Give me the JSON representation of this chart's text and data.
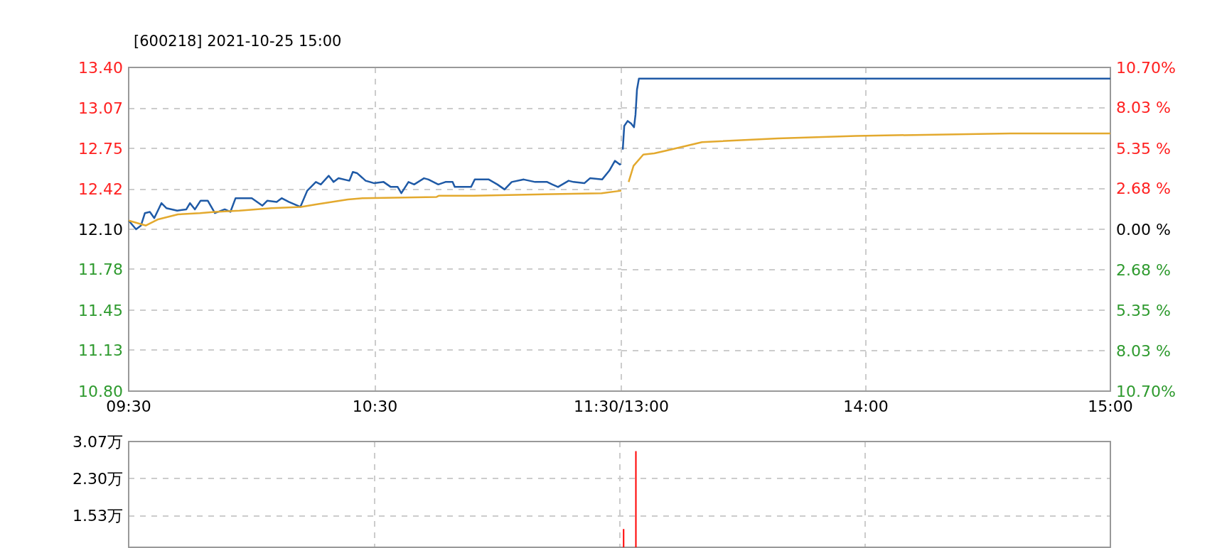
{
  "chart_data": [
    {
      "type": "line",
      "title": "[600218] 2021-10-25 15:00",
      "xlim": [
        9.5,
        11.5
      ],
      "xticks": [
        {
          "value": 9.5,
          "label": "09:30"
        },
        {
          "value": 10.5,
          "label": "10:30"
        },
        {
          "value": 11.5,
          "label": "11:30/13:00"
        }
      ],
      "ylim": [
        10.8,
        13.4
      ],
      "yticks": [
        {
          "value": 10.8,
          "label": "10.80"
        },
        {
          "value": 11.13,
          "label": "11.13"
        },
        {
          "value": 11.45,
          "label": "11.45"
        },
        {
          "value": 11.78,
          "label": "11.78"
        },
        {
          "value": 12.1,
          "label": "12.10"
        },
        {
          "value": 12.42,
          "label": "12.42"
        },
        {
          "value": 12.75,
          "label": "12.75"
        },
        {
          "value": 13.07,
          "label": "13.07"
        },
        {
          "value": 13.4,
          "label": "13.40"
        }
      ],
      "grid": true,
      "marker": "none",
      "line_style": "solid",
      "series": [
        {
          "color": "#1f5aa6",
          "x": [
            9.5,
            9.53,
            9.55,
            9.566,
            9.586,
            9.604,
            9.633,
            9.653,
            9.697,
            9.734,
            9.749,
            9.769,
            9.792,
            9.821,
            9.85,
            9.89,
            9.913,
            9.934,
            9.965,
            10.0,
            10.043,
            10.063,
            10.101,
            10.121,
            10.15,
            10.197,
            10.225,
            10.26,
            10.28,
            10.312,
            10.332,
            10.352,
            10.396,
            10.41,
            10.428,
            10.462,
            10.497,
            10.535,
            10.564,
            10.592,
            10.607,
            10.636,
            10.659,
            10.699,
            10.717,
            10.737,
            10.757,
            10.786,
            10.815,
            10.824,
            10.89,
            10.905,
            10.962,
            10.997,
            11.026,
            11.055,
            11.104,
            11.15,
            11.199,
            11.22,
            11.243,
            11.286,
            11.306,
            11.35,
            11.373,
            11.422,
            11.451,
            11.474,
            11.494,
            11.5
          ],
          "values": [
            12.17,
            12.1,
            12.13,
            12.23,
            12.24,
            12.19,
            12.31,
            12.27,
            12.25,
            12.26,
            12.31,
            12.26,
            12.33,
            12.33,
            12.23,
            12.26,
            12.24,
            12.35,
            12.35,
            12.35,
            12.29,
            12.33,
            12.32,
            12.35,
            12.32,
            12.28,
            12.41,
            12.48,
            12.46,
            12.53,
            12.48,
            12.51,
            12.49,
            12.56,
            12.55,
            12.49,
            12.47,
            12.48,
            12.44,
            12.44,
            12.39,
            12.48,
            12.46,
            12.51,
            12.5,
            12.48,
            12.46,
            12.48,
            12.48,
            12.44,
            12.44,
            12.5,
            12.5,
            12.46,
            12.42,
            12.48,
            12.5,
            12.48,
            12.48,
            12.46,
            12.44,
            12.49,
            12.48,
            12.47,
            12.51,
            12.5,
            12.57,
            12.65,
            12.62,
            12.63
          ]
        },
        {
          "color": "#e3a92e",
          "x": [
            9.5,
            9.57,
            9.62,
            9.7,
            9.79,
            9.85,
            9.95,
            10.08,
            10.2,
            10.26,
            10.39,
            10.45,
            10.75,
            10.76,
            10.9,
            11.42,
            11.5
          ],
          "values": [
            12.17,
            12.13,
            12.18,
            12.22,
            12.23,
            12.24,
            12.25,
            12.27,
            12.28,
            12.3,
            12.34,
            12.35,
            12.36,
            12.37,
            12.37,
            12.39,
            12.41
          ]
        }
      ]
    },
    {
      "type": "line",
      "xlim": [
        13,
        15
      ],
      "xticks": [
        {
          "value": 13,
          "label": null
        },
        {
          "value": 14,
          "label": "14:00"
        },
        {
          "value": 15,
          "label": "15:00"
        }
      ],
      "ylim": [
        10.8,
        13.4
      ],
      "y2lim": [
        -10.7,
        10.7
      ],
      "y2ticks": [
        {
          "value": -10.7,
          "label": "10.70%"
        },
        {
          "value": -8.03,
          "label": "8.03 %"
        },
        {
          "value": -5.35,
          "label": "5.35 %"
        },
        {
          "value": -2.68,
          "label": "2.68 %"
        },
        {
          "value": 0,
          "label": "0.00 %"
        },
        {
          "value": 2.68,
          "label": "2.68 %"
        },
        {
          "value": 5.35,
          "label": "5.35 %"
        },
        {
          "value": 8.03,
          "label": "8.03 %"
        },
        {
          "value": 10.7,
          "label": "10.70%"
        }
      ],
      "grid": true,
      "marker": "none",
      "line_style": "solid",
      "series": [
        {
          "color": "#1f5aa6",
          "x": [
            13.006,
            13.012,
            13.026,
            13.04,
            13.052,
            13.058,
            13.064,
            13.072,
            15
          ],
          "values": [
            12.74,
            12.93,
            12.97,
            12.95,
            12.92,
            13.02,
            13.22,
            13.31,
            13.31
          ]
        },
        {
          "color": "#e3a92e",
          "x": [
            13.03,
            13.05,
            13.09,
            13.135,
            13.18,
            13.33,
            13.64,
            13.96,
            14.59,
            15
          ],
          "values": [
            12.48,
            12.61,
            12.7,
            12.71,
            12.73,
            12.8,
            12.83,
            12.85,
            12.87,
            12.87
          ]
        }
      ]
    },
    {
      "type": "bar",
      "categories": [
        null,
        null,
        null,
        null,
        null,
        null,
        null,
        null,
        null,
        null,
        null,
        null,
        null,
        null,
        null,
        null,
        null,
        null,
        null,
        null,
        null,
        null,
        null,
        null,
        null,
        null,
        null,
        null,
        null,
        null,
        null,
        null,
        null,
        null,
        null,
        null,
        null,
        null,
        null,
        null,
        null,
        null,
        null,
        null,
        null,
        null,
        null,
        null,
        null,
        null,
        null,
        null,
        null,
        null,
        null,
        null,
        null,
        null,
        null,
        null,
        null,
        null,
        null,
        null,
        null,
        null,
        null,
        null,
        null,
        null,
        null,
        null,
        null,
        null,
        null,
        null,
        null,
        null,
        null,
        null,
        null,
        null,
        null,
        null,
        null,
        null,
        null,
        null,
        null,
        null,
        null,
        null,
        null,
        null,
        null,
        null,
        null,
        null,
        null,
        null,
        null,
        null,
        null,
        null,
        null,
        null,
        null,
        null,
        null,
        null,
        null,
        null,
        null,
        null,
        null,
        null,
        null,
        null,
        null,
        null,
        null,
        null,
        null,
        null,
        null,
        null,
        null,
        null,
        null,
        null,
        null,
        null,
        null,
        null,
        null,
        null,
        null,
        null,
        null,
        null,
        null,
        null,
        null,
        null,
        null,
        null,
        null,
        null,
        null,
        null,
        null,
        null,
        null,
        null,
        null,
        null,
        null,
        null,
        null,
        null,
        null,
        null,
        null,
        null,
        null,
        null,
        null,
        null,
        null,
        null,
        null,
        null,
        null,
        null,
        null,
        null,
        null,
        null,
        null,
        null,
        null,
        null,
        null,
        null,
        null,
        null,
        null,
        null,
        null,
        null,
        null,
        null,
        null,
        null,
        null,
        null,
        null,
        null,
        null,
        null,
        null,
        null,
        null,
        null,
        null,
        null,
        null,
        null,
        null,
        null,
        null,
        null,
        null,
        null,
        null,
        null,
        null,
        null,
        null,
        null,
        null,
        null,
        null,
        null,
        null,
        null,
        null,
        null,
        null,
        null,
        null,
        null,
        null,
        null,
        null,
        null,
        null,
        null,
        null,
        null,
        null
      ],
      "ylim": [
        0.87,
        3.07
      ],
      "yticks": [
        {
          "value": 1.53,
          "label": "1.53万"
        },
        {
          "value": 2.3,
          "label": "2.30万"
        },
        {
          "value": 3.07,
          "label": "3.07万"
        }
      ],
      "grid": true,
      "tick_labels": "y",
      "series": [
        {
          "color": "#ff0000",
          "values": [
            null,
            null,
            null,
            null,
            null,
            null,
            null,
            null,
            null,
            null,
            null,
            null,
            null,
            null,
            null,
            null,
            null,
            null,
            null,
            null,
            null,
            null,
            null,
            null,
            null,
            null,
            null,
            null,
            null,
            null,
            null,
            null,
            null,
            null,
            null,
            null,
            null,
            null,
            null,
            null,
            null,
            null,
            null,
            null,
            null,
            null,
            null,
            null,
            null,
            null,
            null,
            null,
            null,
            null,
            null,
            null,
            null,
            null,
            null,
            null,
            null,
            null,
            null,
            null,
            null,
            null,
            null,
            null,
            null,
            null,
            null,
            null,
            null,
            null,
            null,
            null,
            null,
            null,
            null,
            null,
            null,
            null,
            null,
            null,
            null,
            null,
            null,
            null,
            null,
            null,
            null,
            null,
            null,
            null,
            null,
            null,
            null,
            null,
            null,
            null,
            null,
            null,
            null,
            null,
            null,
            null,
            null,
            null,
            null,
            null,
            null,
            null,
            null,
            null,
            null,
            null,
            null,
            null,
            null,
            null,
            null,
            1.25,
            null,
            null,
            2.87,
            null,
            null,
            null,
            null,
            null,
            null,
            null,
            null,
            null,
            null,
            null,
            null,
            null,
            null,
            null,
            null,
            null,
            null,
            null,
            null,
            null,
            null,
            null,
            null,
            null,
            null,
            null,
            null,
            null,
            null,
            null,
            null,
            null,
            null,
            null,
            null,
            null,
            null,
            null,
            null,
            null,
            null,
            null,
            null,
            null,
            null,
            null,
            null,
            null,
            null,
            null,
            null,
            null,
            null,
            null,
            null,
            null,
            null,
            null,
            null,
            null,
            null,
            null,
            null,
            null,
            null,
            null,
            null,
            null,
            null,
            null,
            null,
            null,
            null,
            null,
            null,
            null,
            null,
            null,
            null,
            null,
            null,
            null,
            null,
            null,
            null,
            null,
            null,
            null,
            null,
            null,
            null,
            null,
            null,
            null,
            null,
            null,
            null,
            null,
            null,
            null,
            null,
            null,
            null,
            null,
            null,
            null,
            null,
            null,
            null,
            null,
            null,
            null,
            null,
            null,
            null
          ]
        }
      ]
    }
  ]
}
